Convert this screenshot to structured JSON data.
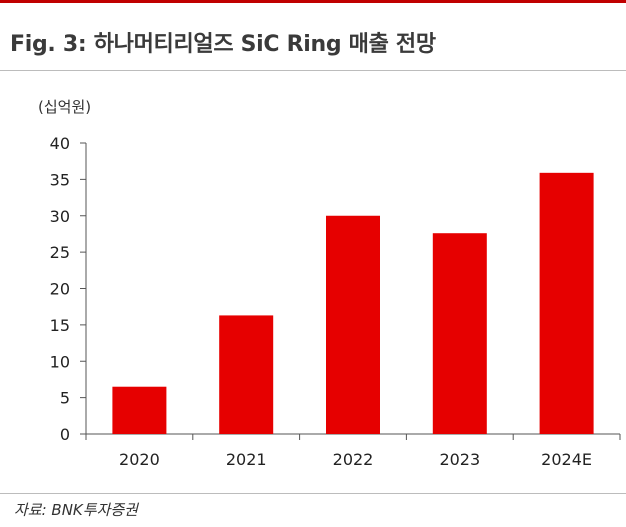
{
  "chart_data": {
    "type": "bar",
    "title": "Fig. 3: 하나머티리얼즈 SiC Ring 매출 전망",
    "unit_label": "(십억원)",
    "categories": [
      "2020",
      "2021",
      "2022",
      "2023",
      "2024E"
    ],
    "values": [
      6.5,
      16.3,
      30.0,
      27.6,
      35.9
    ],
    "ylim": [
      0,
      40
    ],
    "yticks": [
      "0",
      "5",
      "10",
      "15",
      "20",
      "25",
      "30",
      "35",
      "40"
    ],
    "xlabel": "",
    "ylabel": "",
    "grid": false,
    "bar_color": "#e60000",
    "source": "자료: BNK투자증권"
  }
}
